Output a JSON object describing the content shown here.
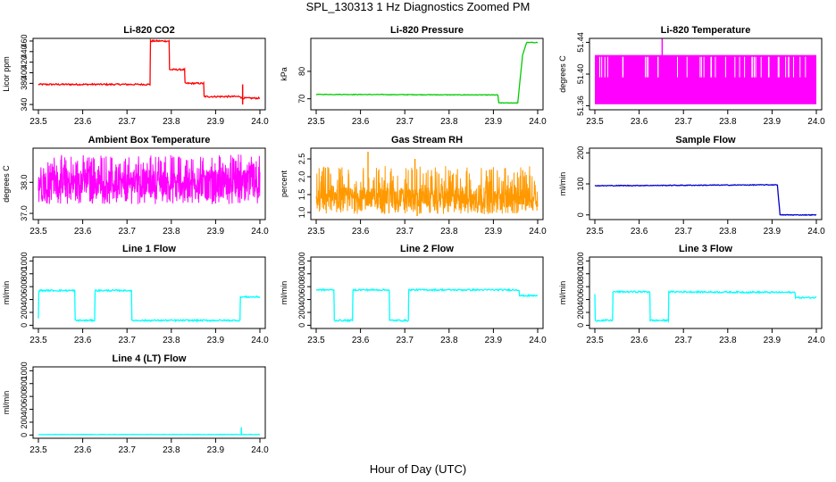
{
  "title": "SPL_130313  1 Hz Diagnostics Zoomed PM",
  "xlabel": "Hour of Day (UTC)",
  "chart_data": [
    {
      "type": "line",
      "title": "Li-820 CO2",
      "ylabel": "Licor ppm",
      "color": "#ff0000",
      "xlim": [
        23.5,
        24.0
      ],
      "xticks": [
        "23.5",
        "23.6",
        "23.7",
        "23.8",
        "23.9",
        "24.0"
      ],
      "ylim": [
        330,
        465
      ],
      "yticks": [
        "340",
        "380",
        "400",
        "420",
        "440",
        "460"
      ],
      "noise": 1.5,
      "series": [
        {
          "x": [
            23.5,
            23.752,
            23.753,
            23.795,
            23.796,
            23.83,
            23.831,
            23.873,
            23.874,
            23.957,
            23.958,
            24.0
          ],
          "y": [
            378,
            378,
            460,
            460,
            406,
            406,
            380,
            380,
            355,
            355,
            352,
            352
          ]
        }
      ],
      "spikes": [
        {
          "x": 23.961,
          "y0": 340,
          "y1": 378
        }
      ]
    },
    {
      "type": "line",
      "title": "Li-820 Pressure",
      "ylabel": "kPa",
      "color": "#00cc00",
      "xlim": [
        23.5,
        24.0
      ],
      "xticks": [
        "23.5",
        "23.6",
        "23.7",
        "23.8",
        "23.9",
        "24.0"
      ],
      "ylim": [
        66,
        92
      ],
      "yticks": [
        "70",
        "80"
      ],
      "noise": 0.1,
      "series": [
        {
          "x": [
            23.5,
            23.91,
            23.912,
            23.955,
            23.966,
            23.975,
            24.0
          ],
          "y": [
            71.6,
            71.4,
            68.5,
            68.5,
            86,
            90.5,
            90.5
          ]
        }
      ],
      "spikes": []
    },
    {
      "type": "line",
      "title": "Li-820 Temperature",
      "ylabel": "degrees C",
      "color": "#ff00ff",
      "xlim": [
        23.5,
        24.0
      ],
      "xticks": [
        "23.5",
        "23.6",
        "23.7",
        "23.8",
        "23.9",
        "24.0"
      ],
      "ylim": [
        51.355,
        51.445
      ],
      "yticks": [
        "51.36",
        "51.40",
        "51.44"
      ],
      "band": [
        51.362,
        51.424
      ],
      "spikes": [
        {
          "x": 23.652,
          "y0": 51.42,
          "y1": 51.445
        }
      ]
    },
    {
      "type": "line",
      "title": "Ambient Box Temperature",
      "ylabel": "degrees C",
      "color": "#ff00ff",
      "xlim": [
        23.5,
        24.0
      ],
      "xticks": [
        "23.5",
        "23.6",
        "23.7",
        "23.8",
        "23.9",
        "24.0"
      ],
      "ylim": [
        36.8,
        39.1
      ],
      "yticks": [
        "37.0",
        "38.0"
      ],
      "noiseband": [
        37.3,
        38.9,
        37.6,
        38.4
      ],
      "spikes": []
    },
    {
      "type": "line",
      "title": "Gas Stream RH",
      "ylabel": "percent",
      "color": "#ff9900",
      "xlim": [
        23.5,
        24.0
      ],
      "xticks": [
        "23.5",
        "23.6",
        "23.7",
        "23.8",
        "23.9",
        "24.0"
      ],
      "ylim": [
        0.8,
        2.8
      ],
      "yticks": [
        "1.0",
        "1.5",
        "2.0",
        "2.5"
      ],
      "noiseband": [
        0.95,
        2.3,
        1.15,
        1.7
      ],
      "spikes": [
        {
          "x": 23.617,
          "y0": 1.2,
          "y1": 2.7
        },
        {
          "x": 23.723,
          "y0": 1.1,
          "y1": 2.5
        },
        {
          "x": 23.728,
          "y0": 0.9,
          "y1": 1.3
        },
        {
          "x": 23.892,
          "y0": 1.0,
          "y1": 2.2
        }
      ]
    },
    {
      "type": "line",
      "title": "Sample Flow",
      "ylabel": "ml/min",
      "color": "#0000cc",
      "xlim": [
        23.5,
        24.0
      ],
      "xticks": [
        "23.5",
        "23.6",
        "23.7",
        "23.8",
        "23.9",
        "24.0"
      ],
      "ylim": [
        -15,
        215
      ],
      "yticks": [
        "0",
        "100",
        "200"
      ],
      "noise": 1.2,
      "series": [
        {
          "x": [
            23.5,
            23.912,
            23.918,
            24.0
          ],
          "y": [
            94,
            97,
            0,
            0
          ]
        }
      ],
      "spikes": []
    },
    {
      "type": "line",
      "title": "Line 1 Flow",
      "ylabel": "ml/min",
      "color": "#00ffff",
      "xlim": [
        23.5,
        24.0
      ],
      "xticks": [
        "23.5",
        "23.6",
        "23.7",
        "23.8",
        "23.9",
        "24.0"
      ],
      "ylim": [
        -50,
        1060
      ],
      "yticks": [
        "0",
        "200",
        "400",
        "600",
        "800",
        "1000"
      ],
      "noise": 12,
      "series": [
        {
          "x": [
            23.5,
            23.501,
            23.582,
            23.583,
            23.627,
            23.628,
            23.71,
            23.711,
            23.955,
            23.956,
            24.0
          ],
          "y": [
            100,
            540,
            540,
            75,
            75,
            540,
            540,
            75,
            75,
            440,
            440
          ]
        }
      ],
      "spikes": []
    },
    {
      "type": "line",
      "title": "Line 2 Flow",
      "ylabel": "ml/min",
      "color": "#00ffff",
      "xlim": [
        23.5,
        24.0
      ],
      "xticks": [
        "23.5",
        "23.6",
        "23.7",
        "23.8",
        "23.9",
        "24.0"
      ],
      "ylim": [
        -50,
        1060
      ],
      "yticks": [
        "0",
        "200",
        "400",
        "600",
        "800",
        "1000"
      ],
      "noise": 12,
      "series": [
        {
          "x": [
            23.5,
            23.54,
            23.541,
            23.582,
            23.583,
            23.665,
            23.666,
            23.708,
            23.709,
            23.958,
            23.959,
            24.0
          ],
          "y": [
            550,
            550,
            75,
            75,
            550,
            550,
            75,
            75,
            550,
            550,
            460,
            460
          ]
        }
      ],
      "spikes": []
    },
    {
      "type": "line",
      "title": "Line 3 Flow",
      "ylabel": "ml/min",
      "color": "#00ffff",
      "xlim": [
        23.5,
        24.0
      ],
      "xticks": [
        "23.5",
        "23.6",
        "23.7",
        "23.8",
        "23.9",
        "24.0"
      ],
      "ylim": [
        -50,
        1060
      ],
      "yticks": [
        "0",
        "200",
        "400",
        "600",
        "800",
        "1000"
      ],
      "noise": 12,
      "series": [
        {
          "x": [
            23.5,
            23.501,
            23.54,
            23.541,
            23.624,
            23.625,
            23.666,
            23.667,
            23.952,
            23.953,
            24.0
          ],
          "y": [
            480,
            75,
            75,
            520,
            520,
            75,
            75,
            520,
            510,
            430,
            430
          ]
        }
      ],
      "spikes": []
    },
    {
      "type": "line",
      "title": "Line 4 (LT) Flow",
      "ylabel": "ml/min",
      "color": "#00ffff",
      "xlim": [
        23.5,
        24.0
      ],
      "xticks": [
        "23.5",
        "23.6",
        "23.7",
        "23.8",
        "23.9",
        "24.0"
      ],
      "ylim": [
        -50,
        1060
      ],
      "yticks": [
        "0",
        "200",
        "400",
        "600",
        "800",
        "1000"
      ],
      "noise": 3,
      "series": [
        {
          "x": [
            23.5,
            24.0
          ],
          "y": [
            8,
            8
          ]
        }
      ],
      "spikes": [
        {
          "x": 23.958,
          "y0": 8,
          "y1": 120
        }
      ]
    }
  ]
}
